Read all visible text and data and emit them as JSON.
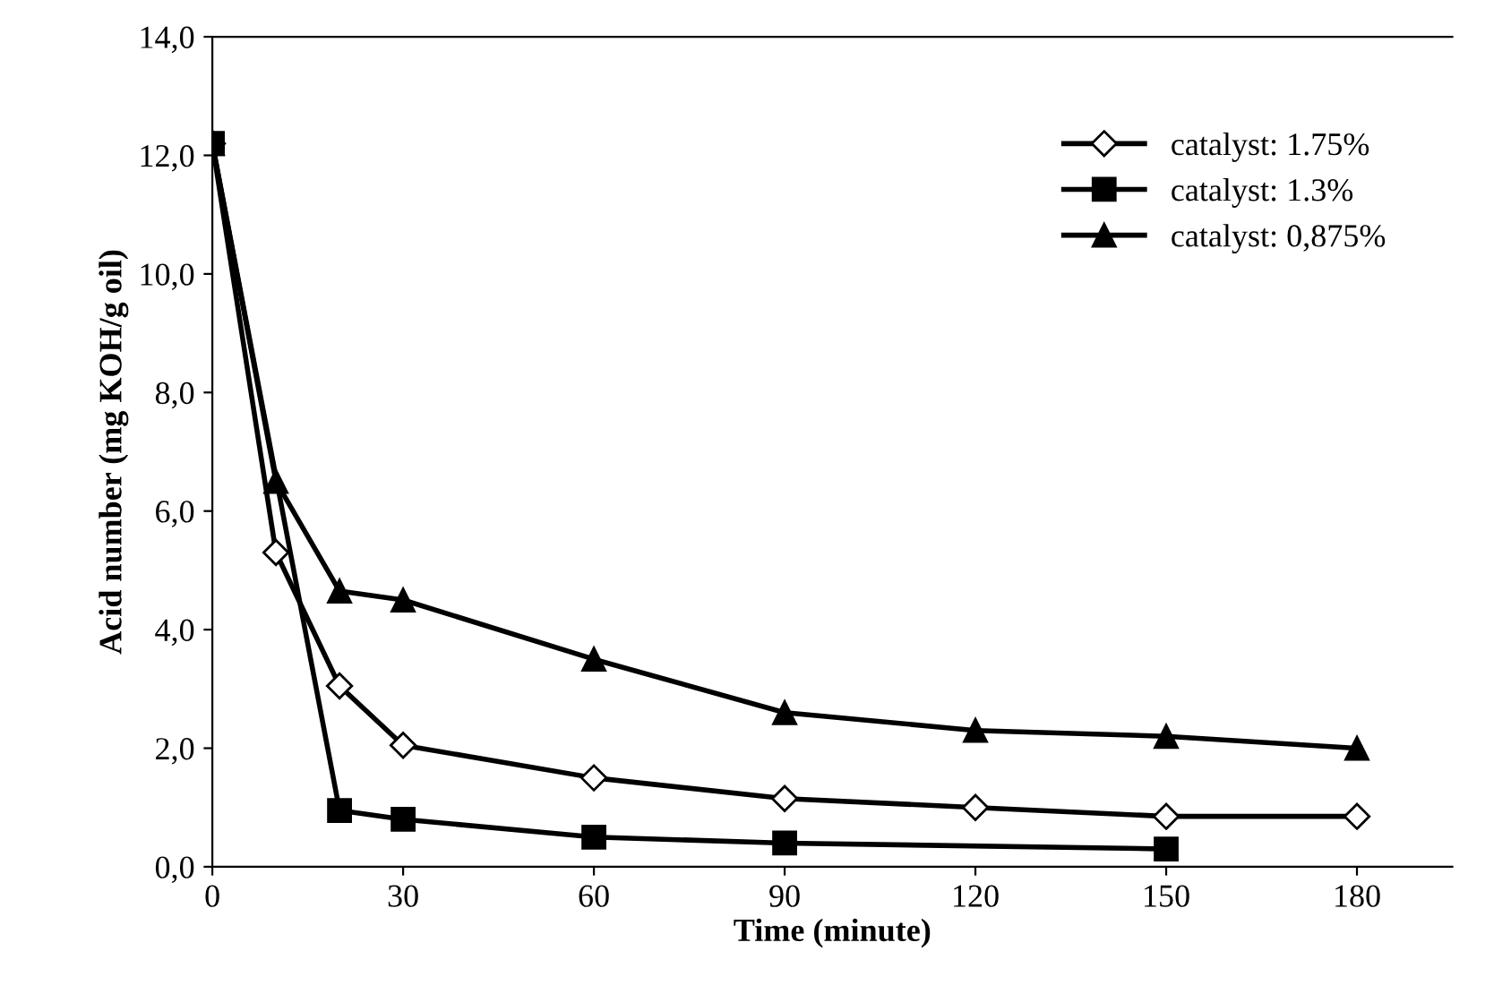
{
  "chart_data": {
    "type": "line",
    "xlabel": "Time (minute)",
    "ylabel": "Acid number (mg KOH/g oil)",
    "xlim": [
      0,
      195
    ],
    "xticks": [
      0,
      30,
      60,
      90,
      120,
      150,
      180
    ],
    "ylim": [
      0,
      14
    ],
    "yticks": [
      {
        "value": 0,
        "label": "0,0"
      },
      {
        "value": 2,
        "label": "2,0"
      },
      {
        "value": 4,
        "label": "4,0"
      },
      {
        "value": 6,
        "label": "6,0"
      },
      {
        "value": 8,
        "label": "8,0"
      },
      {
        "value": 10,
        "label": "10,0"
      },
      {
        "value": 12,
        "label": "12,0"
      },
      {
        "value": 14,
        "label": "14,0"
      }
    ],
    "grid": false,
    "legend": "top right",
    "line_style": "solid",
    "series": [
      {
        "name": "catalyst: 1.75%",
        "color": "#000000",
        "marker": "diamond",
        "x": [
          0,
          10,
          20,
          30,
          60,
          90,
          120,
          150,
          180
        ],
        "values": [
          12.2,
          5.3,
          3.05,
          2.05,
          1.5,
          1.15,
          1.0,
          0.85,
          0.85
        ]
      },
      {
        "name": "catalyst: 1.3%",
        "color": "#000000",
        "marker": "square",
        "x": [
          0,
          20,
          30,
          60,
          90,
          150
        ],
        "values": [
          12.2,
          0.95,
          0.8,
          0.5,
          0.4,
          0.3
        ]
      },
      {
        "name": "catalyst: 0,875%",
        "color": "#000000",
        "marker": "triangle",
        "x": [
          0,
          10,
          20,
          30,
          60,
          90,
          120,
          150,
          180
        ],
        "values": [
          12.2,
          6.5,
          4.65,
          4.5,
          3.5,
          2.6,
          2.3,
          2.2,
          2.0
        ]
      }
    ]
  }
}
